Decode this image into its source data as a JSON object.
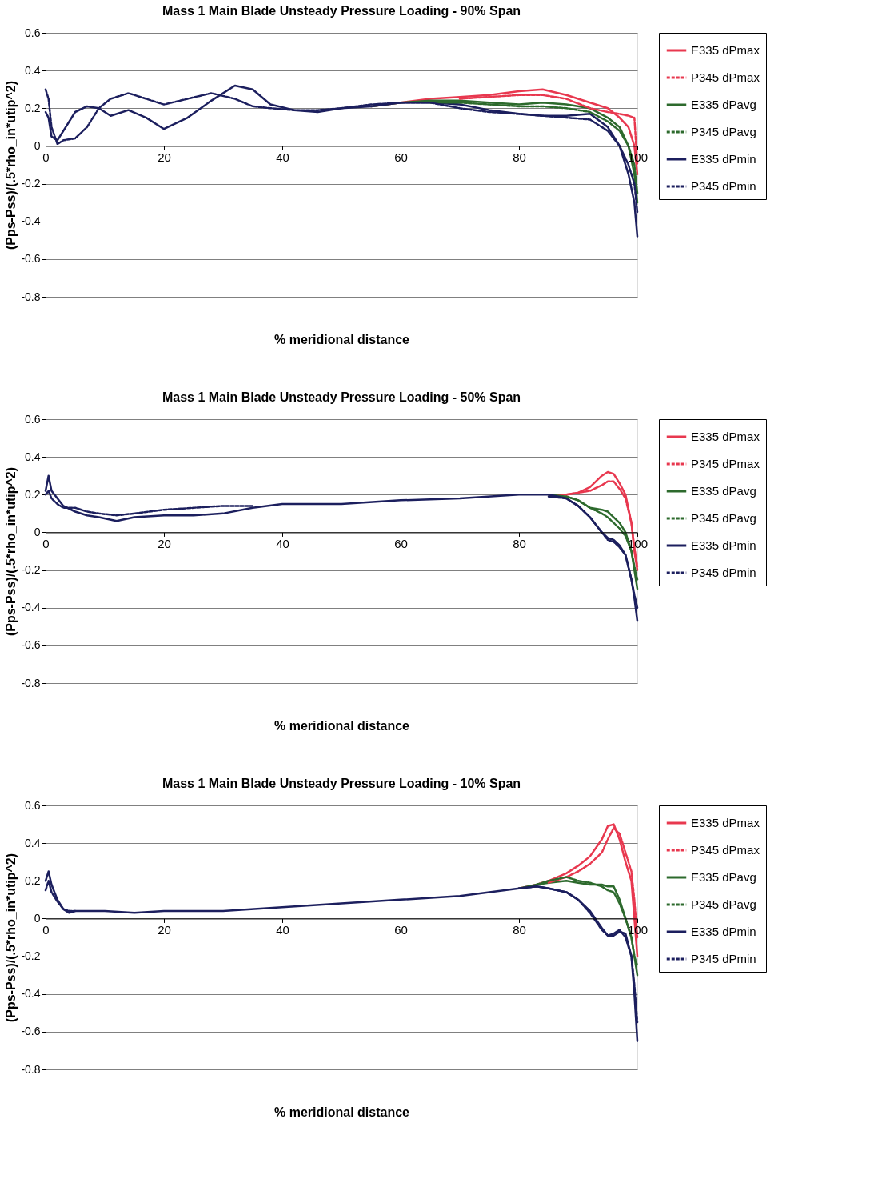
{
  "chart_data": [
    {
      "type": "line",
      "title": "Mass 1 Main Blade Unsteady Pressure Loading - 90% Span",
      "xlabel": "% meridional distance",
      "ylabel": "(Pps-Pss)/(.5*rho_in*utip^2)",
      "xlim": [
        0,
        100
      ],
      "ylim": [
        -0.8,
        0.6
      ],
      "xticks": [
        0,
        20,
        40,
        60,
        80,
        100
      ],
      "yticks": [
        -0.8,
        -0.6,
        -0.4,
        -0.2,
        0,
        0.2,
        0.4,
        0.6
      ],
      "grid": "y",
      "legend": "right",
      "marker": "none",
      "x": [
        0,
        0.5,
        1,
        2,
        3,
        5,
        7,
        9,
        11,
        14,
        17,
        20,
        24,
        28,
        32,
        35,
        38,
        42,
        46,
        50,
        55,
        60,
        65,
        70,
        75,
        80,
        84,
        88,
        92,
        95,
        97,
        98.5,
        99.5,
        100
      ],
      "series": [
        {
          "name": "E335 dPmax",
          "color": "#e8384f",
          "line_style": "solid",
          "values": [
            null,
            null,
            null,
            null,
            null,
            null,
            null,
            null,
            null,
            null,
            null,
            null,
            null,
            null,
            null,
            null,
            null,
            null,
            null,
            null,
            0.21,
            0.23,
            0.25,
            0.26,
            0.27,
            0.29,
            0.3,
            0.27,
            0.23,
            0.2,
            0.15,
            0.1,
            0.0,
            -0.15
          ]
        },
        {
          "name": "P345 dPmax",
          "color": "#e8384f",
          "line_style": "dashed",
          "values": [
            null,
            null,
            null,
            null,
            null,
            null,
            null,
            null,
            null,
            null,
            null,
            null,
            null,
            null,
            null,
            null,
            null,
            null,
            null,
            null,
            null,
            null,
            null,
            0.25,
            0.26,
            0.27,
            0.27,
            0.25,
            0.2,
            0.18,
            0.17,
            0.16,
            0.15,
            -0.1
          ]
        },
        {
          "name": "E335 dPavg",
          "color": "#2d6a2d",
          "line_style": "solid",
          "values": [
            null,
            null,
            null,
            null,
            null,
            null,
            null,
            null,
            null,
            null,
            null,
            null,
            null,
            null,
            null,
            null,
            null,
            null,
            null,
            null,
            0.21,
            0.23,
            0.24,
            0.24,
            0.23,
            0.22,
            0.23,
            0.22,
            0.2,
            0.15,
            0.1,
            0.0,
            -0.15,
            -0.3
          ]
        },
        {
          "name": "P345 dPavg",
          "color": "#2d6a2d",
          "line_style": "dashed",
          "values": [
            null,
            null,
            null,
            null,
            null,
            null,
            null,
            null,
            null,
            null,
            null,
            null,
            null,
            null,
            null,
            null,
            null,
            null,
            null,
            null,
            null,
            null,
            0.23,
            0.23,
            0.22,
            0.21,
            0.21,
            0.2,
            0.18,
            0.13,
            0.08,
            0.0,
            -0.1,
            -0.25
          ]
        },
        {
          "name": "E335 dPmin",
          "color": "#1c1f5e",
          "line_style": "solid",
          "values": [
            0.18,
            0.15,
            0.05,
            0.03,
            0.08,
            0.18,
            0.21,
            0.2,
            0.16,
            0.19,
            0.15,
            0.09,
            0.15,
            0.24,
            0.32,
            0.3,
            0.22,
            0.19,
            0.18,
            0.2,
            0.21,
            0.23,
            0.23,
            0.22,
            0.19,
            0.17,
            0.16,
            0.16,
            0.17,
            0.1,
            0.0,
            -0.15,
            -0.3,
            -0.48
          ]
        },
        {
          "name": "P345 dPmin",
          "color": "#1c1f5e",
          "line_style": "dashed",
          "values": [
            0.3,
            0.25,
            0.1,
            0.01,
            0.03,
            0.04,
            0.1,
            0.2,
            0.25,
            0.28,
            0.25,
            0.22,
            0.25,
            0.28,
            0.25,
            0.21,
            0.2,
            0.19,
            0.19,
            0.2,
            0.22,
            0.23,
            0.23,
            0.2,
            0.18,
            0.17,
            0.16,
            0.15,
            0.14,
            0.08,
            0.0,
            -0.1,
            -0.2,
            -0.35
          ]
        }
      ]
    },
    {
      "type": "line",
      "title": "Mass 1 Main Blade Unsteady Pressure Loading - 50% Span",
      "xlabel": "% meridional distance",
      "ylabel": "(Pps-Pss)/(.5*rho_in*utip^2)",
      "xlim": [
        0,
        100
      ],
      "ylim": [
        -0.8,
        0.6
      ],
      "xticks": [
        0,
        20,
        40,
        60,
        80,
        100
      ],
      "yticks": [
        -0.8,
        -0.6,
        -0.4,
        -0.2,
        0,
        0.2,
        0.4,
        0.6
      ],
      "grid": "y",
      "legend": "right",
      "marker": "none",
      "x": [
        0,
        0.5,
        1,
        2,
        3,
        5,
        7,
        9,
        12,
        15,
        20,
        25,
        30,
        35,
        40,
        50,
        60,
        70,
        80,
        85,
        88,
        90,
        92,
        94,
        95,
        96,
        97,
        98,
        99,
        99.5,
        100
      ],
      "series": [
        {
          "name": "E335 dPmax",
          "color": "#e8384f",
          "line_style": "solid",
          "values": [
            null,
            null,
            null,
            null,
            null,
            null,
            null,
            null,
            null,
            null,
            null,
            null,
            null,
            null,
            null,
            null,
            null,
            null,
            null,
            0.2,
            0.2,
            0.21,
            0.24,
            0.3,
            0.32,
            0.31,
            0.26,
            0.2,
            0.05,
            -0.1,
            -0.2
          ]
        },
        {
          "name": "P345 dPmax",
          "color": "#e8384f",
          "line_style": "dashed",
          "values": [
            null,
            null,
            null,
            null,
            null,
            null,
            null,
            null,
            null,
            null,
            null,
            null,
            null,
            null,
            null,
            null,
            null,
            null,
            null,
            null,
            0.2,
            0.21,
            0.22,
            0.25,
            0.27,
            0.27,
            0.23,
            0.18,
            0.05,
            -0.08,
            -0.18
          ]
        },
        {
          "name": "E335 dPavg",
          "color": "#2d6a2d",
          "line_style": "solid",
          "values": [
            null,
            null,
            null,
            null,
            null,
            null,
            null,
            null,
            null,
            null,
            null,
            null,
            null,
            null,
            null,
            null,
            null,
            null,
            null,
            0.2,
            0.19,
            0.17,
            0.13,
            0.12,
            0.11,
            0.08,
            0.05,
            0.0,
            -0.1,
            -0.2,
            -0.3
          ]
        },
        {
          "name": "P345 dPavg",
          "color": "#2d6a2d",
          "line_style": "dashed",
          "values": [
            null,
            null,
            null,
            null,
            null,
            null,
            null,
            null,
            null,
            null,
            null,
            null,
            null,
            null,
            null,
            null,
            null,
            null,
            null,
            null,
            0.19,
            0.17,
            0.13,
            0.1,
            0.08,
            0.05,
            0.02,
            -0.02,
            -0.1,
            -0.18,
            -0.25
          ]
        },
        {
          "name": "E335 dPmin",
          "color": "#1c1f5e",
          "line_style": "solid",
          "values": [
            0.22,
            0.3,
            0.22,
            0.18,
            0.14,
            0.11,
            0.09,
            0.08,
            0.06,
            0.08,
            0.09,
            0.09,
            0.1,
            0.13,
            0.15,
            0.15,
            0.17,
            0.18,
            0.2,
            0.2,
            0.18,
            0.14,
            0.08,
            0.0,
            -0.03,
            -0.04,
            -0.07,
            -0.12,
            -0.25,
            -0.35,
            -0.47
          ]
        },
        {
          "name": "P345 dPmin",
          "color": "#1c1f5e",
          "line_style": "dashed",
          "values": [
            0.2,
            0.22,
            0.18,
            0.15,
            0.13,
            0.13,
            0.11,
            0.1,
            0.09,
            0.1,
            0.12,
            0.13,
            0.14,
            0.14,
            null,
            null,
            null,
            null,
            null,
            0.19,
            0.18,
            0.14,
            0.08,
            0.0,
            -0.04,
            -0.05,
            -0.08,
            -0.12,
            -0.25,
            -0.33,
            -0.4
          ]
        }
      ]
    },
    {
      "type": "line",
      "title": "Mass 1 Main Blade Unsteady Pressure Loading - 10% Span",
      "xlabel": "% meridional distance",
      "ylabel": "(Pps-Pss)/(.5*rho_in*utip^2)",
      "xlim": [
        0,
        100
      ],
      "ylim": [
        -0.8,
        0.6
      ],
      "xticks": [
        0,
        20,
        40,
        60,
        80,
        100
      ],
      "yticks": [
        -0.8,
        -0.6,
        -0.4,
        -0.2,
        0,
        0.2,
        0.4,
        0.6
      ],
      "grid": "y",
      "legend": "right",
      "marker": "none",
      "x": [
        0,
        0.5,
        1,
        2,
        3,
        4,
        5,
        10,
        15,
        20,
        30,
        40,
        50,
        60,
        70,
        75,
        80,
        83,
        85,
        88,
        90,
        92,
        94,
        95,
        96,
        97,
        98,
        99,
        99.5,
        100
      ],
      "series": [
        {
          "name": "E335 dPmax",
          "color": "#e8384f",
          "line_style": "solid",
          "values": [
            null,
            null,
            null,
            null,
            null,
            null,
            null,
            null,
            null,
            null,
            null,
            null,
            null,
            null,
            null,
            null,
            0.16,
            0.18,
            0.2,
            0.24,
            0.28,
            0.33,
            0.42,
            0.49,
            0.5,
            0.42,
            0.3,
            0.2,
            0.0,
            -0.2
          ]
        },
        {
          "name": "P345 dPmax",
          "color": "#e8384f",
          "line_style": "dashed",
          "values": [
            null,
            null,
            null,
            null,
            null,
            null,
            null,
            null,
            null,
            null,
            null,
            null,
            null,
            null,
            null,
            null,
            null,
            null,
            0.19,
            0.22,
            0.25,
            0.29,
            0.35,
            0.42,
            0.48,
            0.45,
            0.35,
            0.25,
            0.1,
            -0.1
          ]
        },
        {
          "name": "E335 dPavg",
          "color": "#2d6a2d",
          "line_style": "solid",
          "values": [
            null,
            null,
            null,
            null,
            null,
            null,
            null,
            null,
            null,
            null,
            null,
            null,
            null,
            null,
            null,
            null,
            0.16,
            0.18,
            0.19,
            0.2,
            0.19,
            0.18,
            0.18,
            0.17,
            0.17,
            0.1,
            0.0,
            -0.1,
            -0.2,
            -0.3
          ]
        },
        {
          "name": "P345 dPavg",
          "color": "#2d6a2d",
          "line_style": "dashed",
          "values": [
            null,
            null,
            null,
            null,
            null,
            null,
            null,
            null,
            null,
            null,
            null,
            null,
            null,
            null,
            null,
            null,
            null,
            0.18,
            0.2,
            0.22,
            0.2,
            0.19,
            0.17,
            0.15,
            0.14,
            0.08,
            0.0,
            -0.1,
            -0.2,
            -0.25
          ]
        },
        {
          "name": "E335 dPmin",
          "color": "#1c1f5e",
          "line_style": "solid",
          "values": [
            0.2,
            0.25,
            0.18,
            0.1,
            0.05,
            0.03,
            0.04,
            0.04,
            0.03,
            0.04,
            0.04,
            0.06,
            0.08,
            0.1,
            0.12,
            0.14,
            0.16,
            0.17,
            0.16,
            0.14,
            0.1,
            0.04,
            -0.05,
            -0.09,
            -0.09,
            -0.07,
            -0.08,
            -0.2,
            -0.4,
            -0.65
          ]
        },
        {
          "name": "P345 dPmin",
          "color": "#1c1f5e",
          "line_style": "dashed",
          "values": [
            0.15,
            0.2,
            0.14,
            0.09,
            0.05,
            0.04,
            0.04,
            null,
            null,
            null,
            null,
            null,
            null,
            null,
            null,
            null,
            0.16,
            0.17,
            0.16,
            0.14,
            0.1,
            0.03,
            -0.06,
            -0.09,
            -0.08,
            -0.06,
            -0.1,
            -0.2,
            -0.35,
            -0.55
          ]
        }
      ]
    }
  ]
}
